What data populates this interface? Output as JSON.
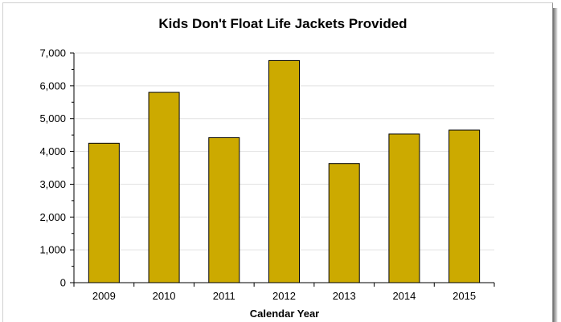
{
  "chart_data": {
    "type": "bar",
    "title": "Kids Don't Float Life Jackets Provided",
    "xlabel": "Calendar Year",
    "ylabel": "",
    "categories": [
      "2009",
      "2010",
      "2011",
      "2012",
      "2013",
      "2014",
      "2015"
    ],
    "values": [
      4250,
      5800,
      4420,
      6770,
      3630,
      4530,
      4650
    ],
    "ylim": [
      0,
      7000
    ],
    "yticks": [
      0,
      1000,
      2000,
      3000,
      4000,
      5000,
      6000,
      7000
    ],
    "ytick_labels": [
      "0",
      "1,000",
      "2,000",
      "3,000",
      "4,000",
      "5,000",
      "6,000",
      "7,000"
    ],
    "grid": true,
    "legend": "none",
    "colors": {
      "bar": "#CCAA00",
      "bar_edge": "#000000",
      "grid": "#e2e2e2"
    }
  }
}
